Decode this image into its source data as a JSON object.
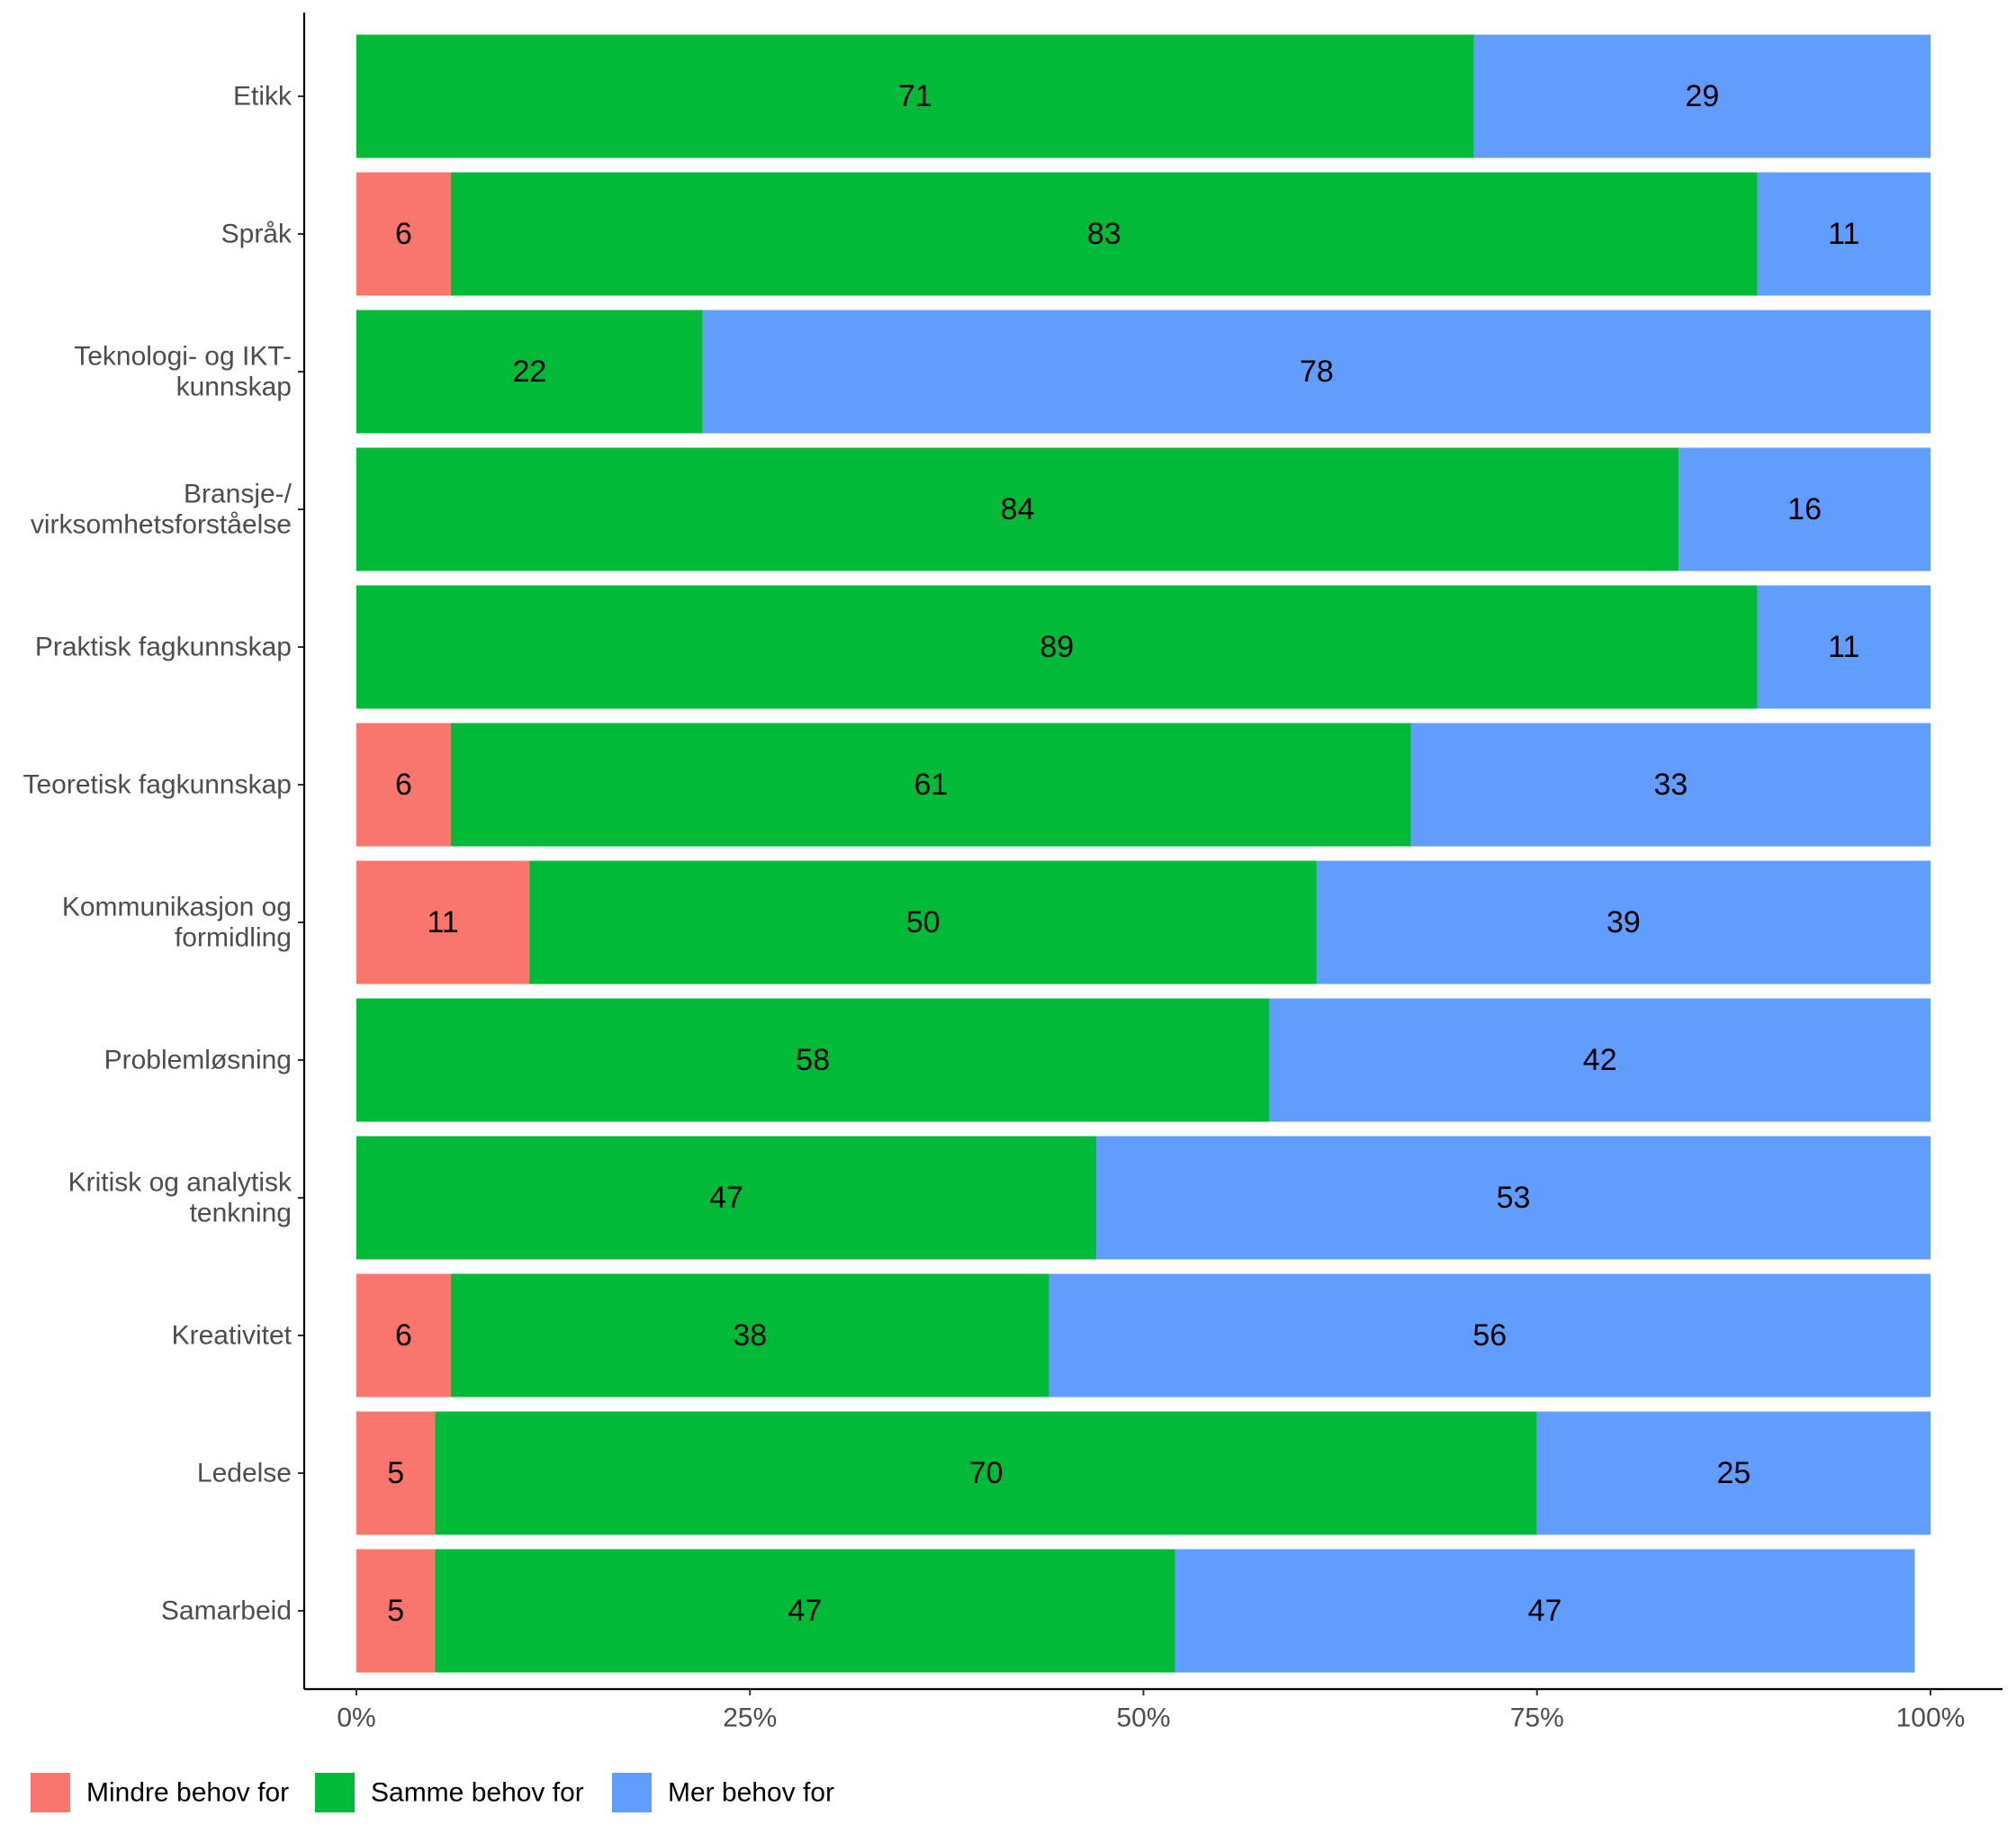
{
  "chart_data": {
    "type": "bar",
    "orientation": "horizontal",
    "stacked": true,
    "percent_stacked": true,
    "categories": [
      "Etikk",
      "Språk",
      "Teknologi- og IKT-\nkunnskap",
      "Bransje-/\nvirksomhetsforståelse",
      "Praktisk fagkunnskap",
      "Teoretisk fagkunnskap",
      "Kommunikasjon og\nformidling",
      "Problemløsning",
      "Kritisk og analytisk\ntenkning",
      "Kreativitet",
      "Ledelse",
      "Samarbeid"
    ],
    "series": [
      {
        "name": "Mindre behov for",
        "color": "#F8766D",
        "values": [
          0,
          6,
          0,
          0,
          0,
          6,
          11,
          0,
          0,
          6,
          5,
          5
        ],
        "labels": [
          "",
          "6",
          "",
          "",
          "",
          "6",
          "11",
          "",
          "",
          "6",
          "5",
          "5"
        ]
      },
      {
        "name": "Samme behov for",
        "color": "#00BA38",
        "values": [
          71,
          83,
          22,
          84,
          89,
          61,
          50,
          58,
          47,
          38,
          70,
          47
        ],
        "labels": [
          "71",
          "83",
          "22",
          "84",
          "89",
          "61",
          "50",
          "58",
          "47",
          "38",
          "70",
          "47"
        ]
      },
      {
        "name": "Mer behov for",
        "color": "#619CFF",
        "values": [
          29,
          11,
          78,
          16,
          11,
          33,
          39,
          42,
          53,
          56,
          25,
          47
        ],
        "labels": [
          "29",
          "11",
          "78",
          "16",
          "11",
          "33",
          "39",
          "42",
          "53",
          "56",
          "25",
          "47"
        ]
      }
    ],
    "x_ticks": [
      "0%",
      "25%",
      "50%",
      "75%",
      "100%"
    ],
    "xlim": [
      0,
      100
    ],
    "xlabel": "",
    "ylabel": "",
    "title": "",
    "grid": false,
    "legend_position": "bottom-left"
  }
}
